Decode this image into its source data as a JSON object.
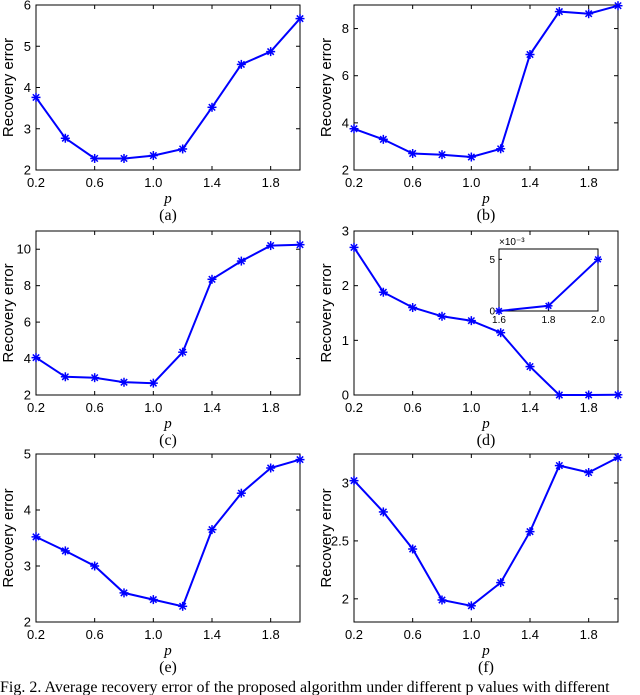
{
  "figure": {
    "caption": "Fig. 2. Average recovery error of the proposed algorithm under different p values with different"
  },
  "chart_data": [
    {
      "type": "line",
      "panel_label": "(a)",
      "xlabel": "p",
      "ylabel": "Recovery error",
      "xlim": [
        0.2,
        2.0
      ],
      "ylim": [
        2,
        6
      ],
      "xticks": [
        "0.2",
        "0.6",
        "1.0",
        "1.4",
        "1.8"
      ],
      "yticks": [
        "2",
        "3",
        "4",
        "5",
        "6"
      ],
      "x": [
        0.2,
        0.4,
        0.6,
        0.8,
        1.0,
        1.2,
        1.4,
        1.6,
        1.8,
        2.0
      ],
      "series": [
        {
          "values": [
            3.76,
            2.77,
            2.28,
            2.28,
            2.35,
            2.51,
            3.52,
            4.56,
            4.87,
            5.67
          ],
          "color": "#0000ff"
        }
      ]
    },
    {
      "type": "line",
      "panel_label": "(b)",
      "xlabel": "p",
      "ylabel": "Recovery error",
      "xlim": [
        0.2,
        2.0
      ],
      "ylim": [
        2,
        9
      ],
      "xticks": [
        "0.2",
        "0.6",
        "1.0",
        "1.4",
        "1.8"
      ],
      "yticks": [
        "2",
        "4",
        "6",
        "8"
      ],
      "x": [
        0.2,
        0.4,
        0.6,
        0.8,
        1.0,
        1.2,
        1.4,
        1.6,
        1.8,
        2.0
      ],
      "series": [
        {
          "values": [
            3.75,
            3.3,
            2.7,
            2.65,
            2.55,
            2.9,
            6.9,
            8.72,
            8.63,
            8.97
          ],
          "color": "#0000ff"
        }
      ]
    },
    {
      "type": "line",
      "panel_label": "(c)",
      "xlabel": "p",
      "ylabel": "Recovery error",
      "xlim": [
        0.2,
        2.0
      ],
      "ylim": [
        2,
        11
      ],
      "xticks": [
        "0.2",
        "0.6",
        "1.0",
        "1.4",
        "1.8"
      ],
      "yticks": [
        "2",
        "4",
        "6",
        "8",
        "10"
      ],
      "x": [
        0.2,
        0.4,
        0.6,
        0.8,
        1.0,
        1.2,
        1.4,
        1.6,
        1.8,
        2.0
      ],
      "series": [
        {
          "values": [
            4.05,
            3.0,
            2.95,
            2.7,
            2.65,
            4.35,
            8.35,
            9.35,
            10.2,
            10.25
          ],
          "color": "#0000ff"
        }
      ]
    },
    {
      "type": "line",
      "panel_label": "(d)",
      "xlabel": "p",
      "ylabel": "Recovery error",
      "xlim": [
        0.2,
        2.0
      ],
      "ylim": [
        0,
        3
      ],
      "xticks": [
        "0.2",
        "0.6",
        "1.0",
        "1.4",
        "1.8"
      ],
      "yticks": [
        "0",
        "1",
        "2",
        "3"
      ],
      "x": [
        0.2,
        0.4,
        0.6,
        0.8,
        1.0,
        1.2,
        1.4,
        1.6,
        1.8,
        2.0
      ],
      "series": [
        {
          "values": [
            2.7,
            1.88,
            1.6,
            1.44,
            1.36,
            1.14,
            0.52,
            0.0,
            0.0005,
            0.005
          ],
          "color": "#0000ff"
        }
      ],
      "inset": {
        "xlim": [
          1.6,
          2.0
        ],
        "ylim": [
          0,
          6
        ],
        "xticks": [
          "1.6",
          "1.8",
          "2.0"
        ],
        "yticks": [
          "0",
          "5"
        ],
        "exponent_label": "×10⁻³",
        "x": [
          1.6,
          1.8,
          2.0
        ],
        "values": [
          0.0,
          0.5,
          5.0
        ]
      }
    },
    {
      "type": "line",
      "panel_label": "(e)",
      "xlabel": "p",
      "ylabel": "Recovery error",
      "xlim": [
        0.2,
        2.0
      ],
      "ylim": [
        2,
        5
      ],
      "xticks": [
        "0.2",
        "0.6",
        "1.0",
        "1.4",
        "1.8"
      ],
      "yticks": [
        "2",
        "3",
        "4",
        "5"
      ],
      "x": [
        0.2,
        0.4,
        0.6,
        0.8,
        1.0,
        1.2,
        1.4,
        1.6,
        1.8,
        2.0
      ],
      "series": [
        {
          "values": [
            3.52,
            3.27,
            3.0,
            2.52,
            2.4,
            2.28,
            3.65,
            4.3,
            4.75,
            4.9
          ],
          "color": "#0000ff"
        }
      ]
    },
    {
      "type": "line",
      "panel_label": "(f)",
      "xlabel": "p",
      "ylabel": "Recovery error",
      "xlim": [
        0.2,
        2.0
      ],
      "ylim": [
        1.8,
        3.25
      ],
      "xticks": [
        "0.2",
        "0.6",
        "1.0",
        "1.4",
        "1.8"
      ],
      "yticks": [
        "2",
        "2.5",
        "3"
      ],
      "x": [
        0.2,
        0.4,
        0.6,
        0.8,
        1.0,
        1.2,
        1.4,
        1.6,
        1.8,
        2.0
      ],
      "series": [
        {
          "values": [
            3.02,
            2.75,
            2.43,
            1.99,
            1.94,
            2.14,
            2.58,
            3.15,
            3.09,
            3.22
          ],
          "color": "#0000ff"
        }
      ]
    }
  ]
}
